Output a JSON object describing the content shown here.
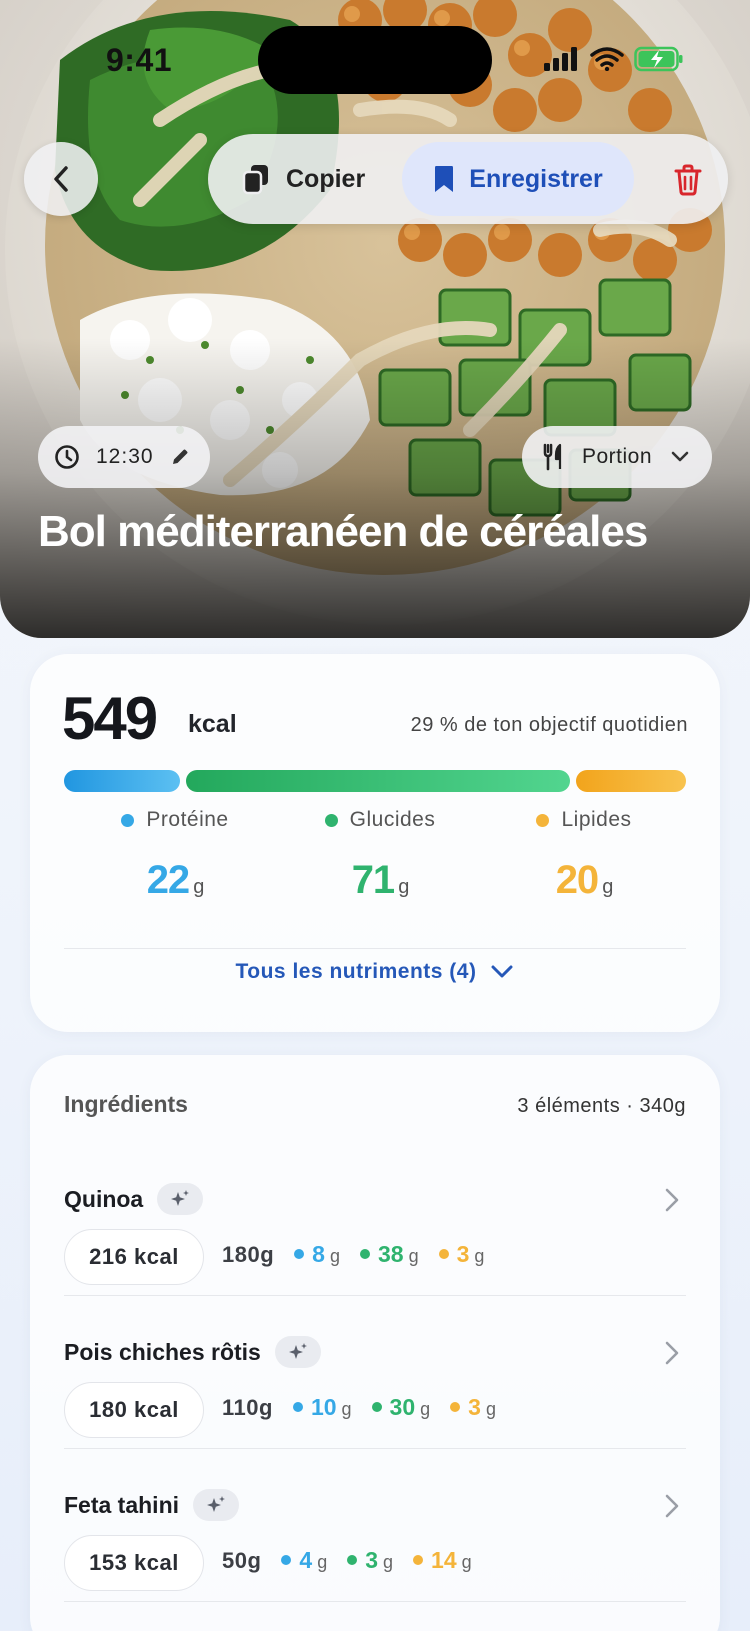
{
  "status": {
    "time": "9:41"
  },
  "toolbar": {
    "copy_label": "Copier",
    "save_label": "Enregistrer"
  },
  "hero": {
    "time_chip": "12:30",
    "portion_label": "Portion",
    "title": "Bol méditerranéen de céréales"
  },
  "colors": {
    "protein": "#35a8e6",
    "carbs": "#2fb36e",
    "fat": "#f4b43a",
    "accent": "#2558b8",
    "delete": "#d8262c"
  },
  "summary": {
    "kcal": "549",
    "kcal_unit": "kcal",
    "goal_text": "29 % de ton objectif quotidien",
    "bar_shares": {
      "protein": 0.19,
      "carbs": 0.63,
      "fat": 0.18
    },
    "macros": [
      {
        "label": "Protéine",
        "value": "22",
        "unit": "g"
      },
      {
        "label": "Glucides",
        "value": "71",
        "unit": "g"
      },
      {
        "label": "Lipides",
        "value": "20",
        "unit": "g"
      }
    ],
    "all_nutrients": "Tous les nutriments (4)"
  },
  "ingredients": {
    "title": "Ingrédients",
    "count": "3 éléments · 340g",
    "items": [
      {
        "name": "Quinoa",
        "kcal": "216 kcal",
        "weight": "180g",
        "protein": "8",
        "carbs": "38",
        "fat": "3",
        "unit": "g"
      },
      {
        "name": "Pois chiches rôtis",
        "kcal": "180 kcal",
        "weight": "110g",
        "protein": "10",
        "carbs": "30",
        "fat": "3",
        "unit": "g"
      },
      {
        "name": "Feta tahini",
        "kcal": "153 kcal",
        "weight": "50g",
        "protein": "4",
        "carbs": "3",
        "fat": "14",
        "unit": "g"
      }
    ]
  }
}
